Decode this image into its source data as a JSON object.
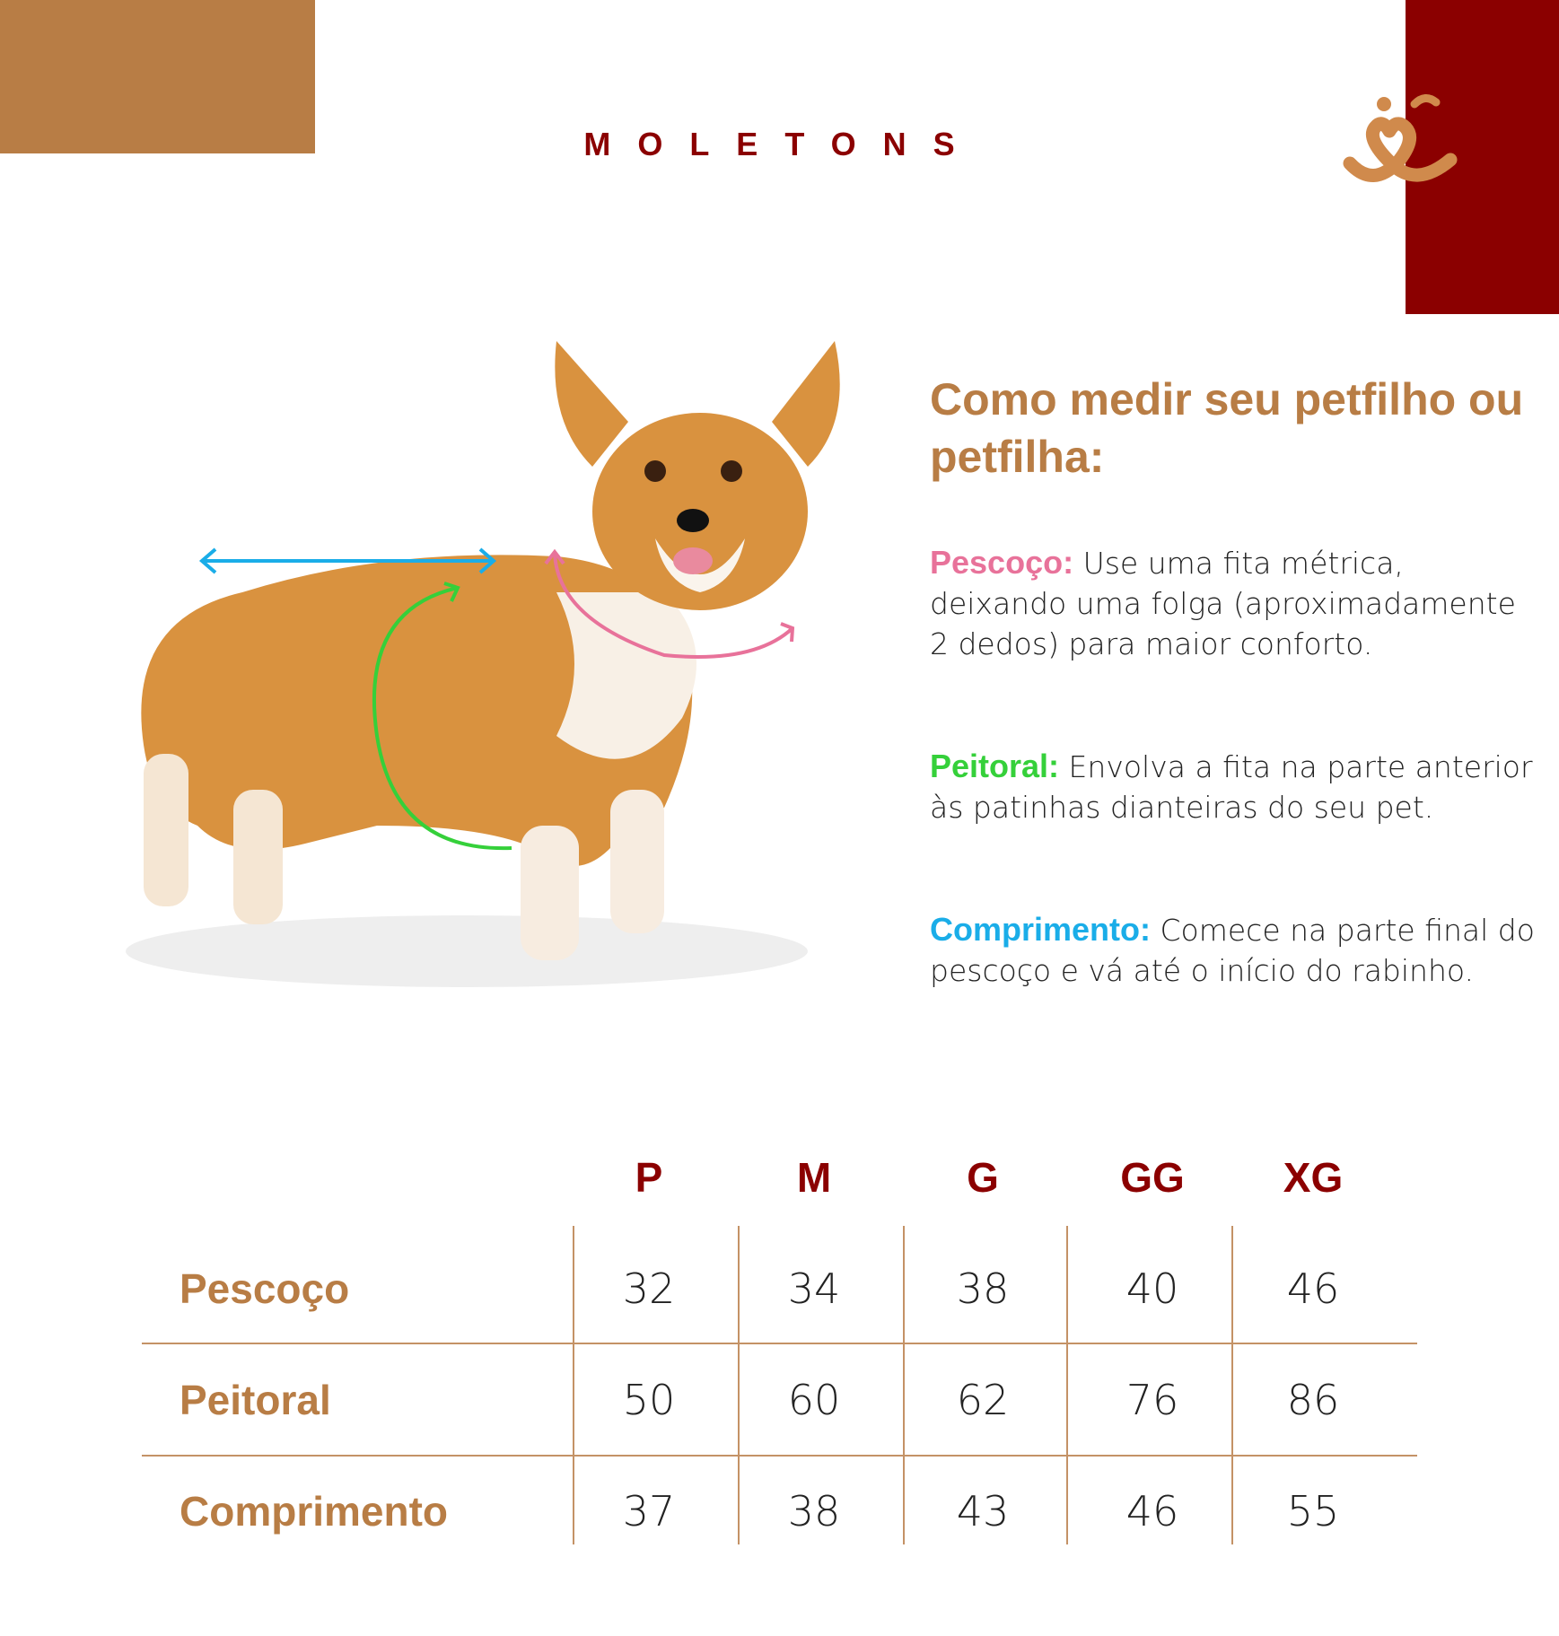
{
  "colors": {
    "tan": "#B87D45",
    "dark_red": "#8B0000",
    "logo": "#D08A4C",
    "pink": "#E8729A",
    "green": "#35D03A",
    "blue": "#1AADE8",
    "line": "#C49266"
  },
  "title": "MOLETONS",
  "logo": "smiling-pet-face-logo",
  "guide": {
    "heading": "Como medir seu petfilho ou petfilha:",
    "items": [
      {
        "label": "Pescoço:",
        "text": "Use uma fita métrica, deixando uma folga (aproximadamente 2 dedos) para maior conforto."
      },
      {
        "label": "Peitoral:",
        "text": "Envolva a fita na parte anterior às patinhas dianteiras do seu pet."
      },
      {
        "label": "Comprimento:",
        "text": "Comece na parte final do pescoço e vá até o início do rabinho."
      }
    ]
  },
  "table": {
    "sizes": [
      "P",
      "M",
      "G",
      "GG",
      "XG"
    ],
    "rows": [
      {
        "label": "Pescoço",
        "values": [
          "32",
          "34",
          "38",
          "40",
          "46"
        ]
      },
      {
        "label": "Peitoral",
        "values": [
          "50",
          "60",
          "62",
          "76",
          "86"
        ]
      },
      {
        "label": "Comprimento",
        "values": [
          "37",
          "38",
          "43",
          "46",
          "55"
        ]
      }
    ]
  }
}
